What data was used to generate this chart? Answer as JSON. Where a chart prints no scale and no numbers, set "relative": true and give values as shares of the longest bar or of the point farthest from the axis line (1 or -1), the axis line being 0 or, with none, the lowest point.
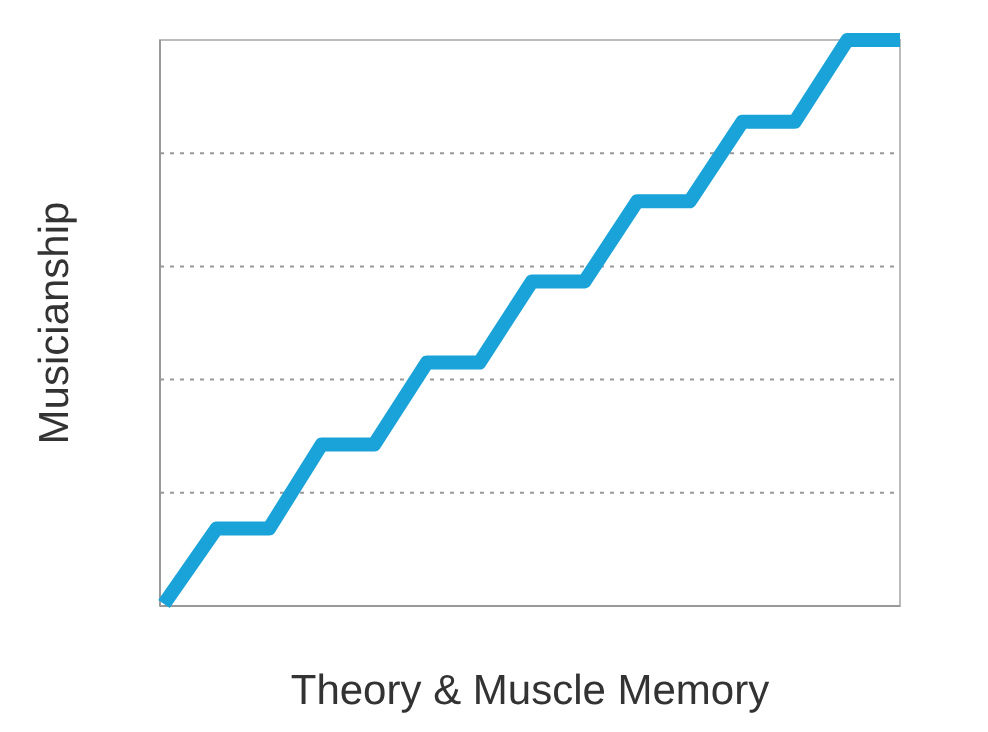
{
  "chart_data": {
    "type": "line",
    "relative": true,
    "xlabel": "Theory & Muscle Memory",
    "ylabel": "Musicianship",
    "categories": [
      null,
      null,
      null,
      null,
      null,
      null,
      null,
      null,
      null,
      null,
      null,
      null,
      null,
      null,
      null
    ],
    "series": [
      {
        "color": "#1aa3d9",
        "values": [
          0,
          0.134,
          0.134,
          0.283,
          0.283,
          0.428,
          0.428,
          0.572,
          0.572,
          0.714,
          0.714,
          0.855,
          0.855,
          1,
          1
        ]
      }
    ],
    "grid": "y",
    "line_style": "solid",
    "marker": "none"
  }
}
